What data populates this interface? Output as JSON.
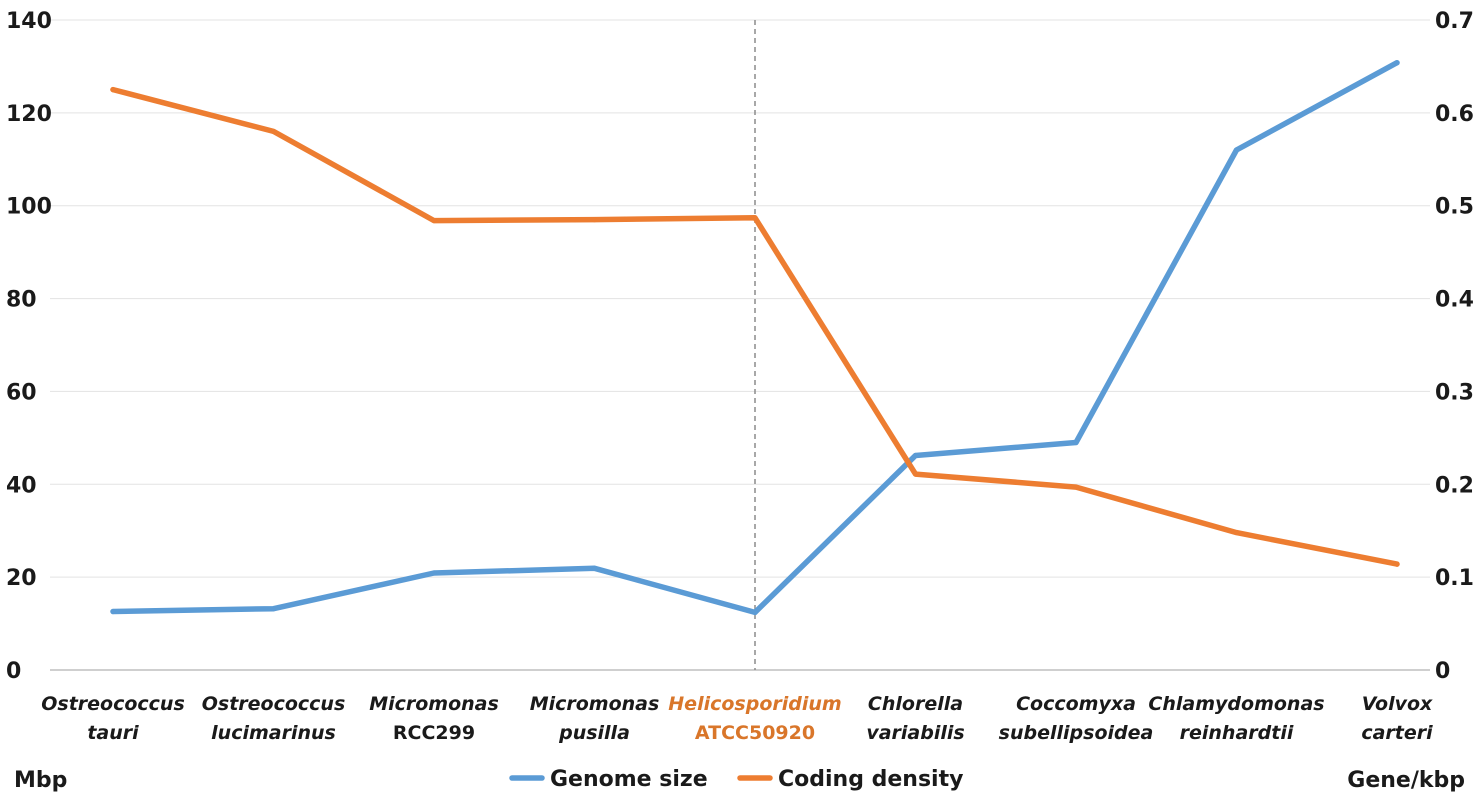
{
  "chart_data": {
    "type": "line",
    "categories": [
      {
        "line1": "Ostreococcus",
        "line2": "tauri",
        "line2_italic": true,
        "highlight": false
      },
      {
        "line1": "Ostreococcus",
        "line2": "lucimarinus",
        "line2_italic": true,
        "highlight": false
      },
      {
        "line1": "Micromonas",
        "line2": "RCC299",
        "line2_italic": false,
        "highlight": false
      },
      {
        "line1": "Micromonas",
        "line2": "pusilla",
        "line2_italic": true,
        "highlight": false
      },
      {
        "line1": "Helicosporidium",
        "line2": "ATCC50920",
        "line2_italic": false,
        "highlight": true
      },
      {
        "line1": "Chlorella",
        "line2": "variabilis",
        "line2_italic": true,
        "highlight": false
      },
      {
        "line1": "Coccomyxa",
        "line2": "subellipsoidea",
        "line2_italic": true,
        "highlight": false
      },
      {
        "line1": "Chlamydomonas",
        "line2": "reinhardtii",
        "line2_italic": true,
        "highlight": false
      },
      {
        "line1": "Volvox",
        "line2": "carteri",
        "line2_italic": true,
        "highlight": false
      }
    ],
    "series": [
      {
        "name": "Genome size",
        "axis": "left",
        "color": "#5b9bd5",
        "values": [
          12.6,
          13.2,
          20.9,
          21.9,
          12.4,
          46.2,
          49.0,
          112.0,
          130.8
        ]
      },
      {
        "name": "Coding density",
        "axis": "right",
        "color": "#ed7d31",
        "values": [
          0.625,
          0.58,
          0.484,
          0.485,
          0.487,
          0.211,
          0.197,
          0.148,
          0.114
        ]
      }
    ],
    "left_axis": {
      "unit": "Mbp",
      "ylim": [
        0,
        140
      ],
      "ticks": [
        "0",
        "20",
        "40",
        "60",
        "80",
        "100",
        "120",
        "140"
      ]
    },
    "right_axis": {
      "unit": "Gene/kbp",
      "ylim": [
        0,
        0.7
      ],
      "ticks": [
        "0",
        "0.1",
        "0.2",
        "0.3",
        "0.4",
        "0.5",
        "0.6",
        "0.7"
      ]
    },
    "grid": true,
    "marker_line_category_index": 4,
    "legend": {
      "placement": "bottom-center"
    },
    "highlight_color": "#d9762a"
  }
}
